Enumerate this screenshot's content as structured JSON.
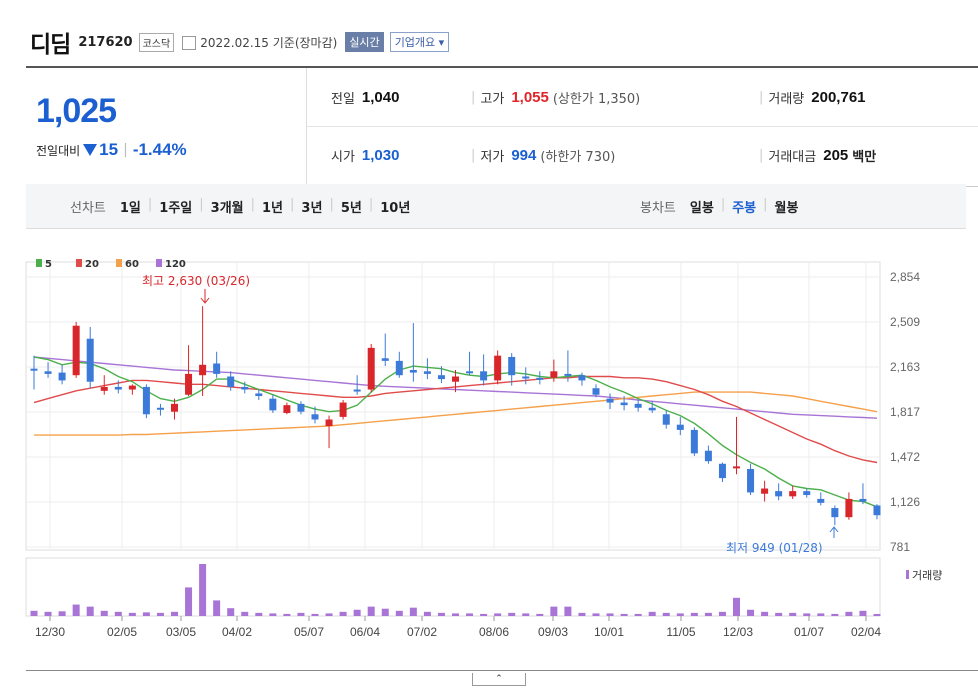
{
  "stock": {
    "name": "디딤",
    "code": "217620",
    "market": "코스닥",
    "date_text": "2022.02.15 기준(장마감)",
    "realtime_label": "실시간",
    "overview_label": "기업개요"
  },
  "price": {
    "current": "1,025",
    "change_label": "전일대비",
    "change_amount": "15",
    "change_sep": "|",
    "change_pct": "-1.44%"
  },
  "info": {
    "prev_label": "전일",
    "prev": "1,040",
    "high_label": "고가",
    "high": "1,055",
    "upper_limit": "(상한가 1,350)",
    "volume_label": "거래량",
    "volume": "200,761",
    "open_label": "시가",
    "open": "1,030",
    "low_label": "저가",
    "low": "994",
    "lower_limit": "(하한가 730)",
    "amount_label": "거래대금",
    "amount": "205",
    "amount_unit": "백만",
    "sep": "|"
  },
  "tabs": {
    "line_title": "선차트",
    "line_items": [
      "1일",
      "1주일",
      "3개월",
      "1년",
      "3년",
      "5년",
      "10년"
    ],
    "candle_title": "봉차트",
    "candle_items": [
      "일봉",
      "주봉",
      "월봉"
    ],
    "candle_selected": 1,
    "sep": "|"
  },
  "chart_data": {
    "type": "candlestick",
    "legend": [
      {
        "name": "5",
        "color": "#4bb04b"
      },
      {
        "name": "20",
        "color": "#e04b4b"
      },
      {
        "name": "60",
        "color": "#f5a04a"
      },
      {
        "name": "120",
        "color": "#a874d6"
      }
    ],
    "y_ticks": [
      "2,854",
      "2,509",
      "2,163",
      "1,817",
      "1,472",
      "1,126",
      "781"
    ],
    "ylim": [
      781,
      2854
    ],
    "x_ticks": [
      "12/30",
      "02/05",
      "03/05",
      "04/02",
      "05/07",
      "06/04",
      "07/02",
      "08/06",
      "09/03",
      "10/01",
      "11/05",
      "12/03",
      "01/07",
      "02/04"
    ],
    "high_annotation": "최고 2,630 (03/26)",
    "low_annotation": "최저 949 (01/28)",
    "volume_label": "거래량",
    "candles": [
      {
        "o": 2150,
        "h": 2250,
        "l": 1990,
        "c": 2150,
        "up": false
      },
      {
        "o": 2130,
        "h": 2200,
        "l": 2080,
        "c": 2110,
        "up": false
      },
      {
        "o": 2120,
        "h": 2180,
        "l": 2030,
        "c": 2060,
        "up": false
      },
      {
        "o": 2100,
        "h": 2510,
        "l": 2080,
        "c": 2480,
        "up": true
      },
      {
        "o": 2380,
        "h": 2470,
        "l": 2000,
        "c": 2050,
        "up": false
      },
      {
        "o": 1980,
        "h": 2100,
        "l": 1950,
        "c": 2010,
        "up": true
      },
      {
        "o": 2010,
        "h": 2060,
        "l": 1960,
        "c": 1990,
        "up": false
      },
      {
        "o": 1990,
        "h": 2030,
        "l": 1950,
        "c": 2020,
        "up": true
      },
      {
        "o": 2010,
        "h": 2030,
        "l": 1770,
        "c": 1800,
        "up": false
      },
      {
        "o": 1840,
        "h": 1880,
        "l": 1790,
        "c": 1850,
        "up": false
      },
      {
        "o": 1820,
        "h": 1920,
        "l": 1760,
        "c": 1880,
        "up": true
      },
      {
        "o": 1950,
        "h": 2330,
        "l": 1940,
        "c": 2110,
        "up": true
      },
      {
        "o": 2100,
        "h": 2630,
        "l": 1940,
        "c": 2180,
        "up": true
      },
      {
        "o": 2190,
        "h": 2280,
        "l": 2080,
        "c": 2110,
        "up": false
      },
      {
        "o": 2090,
        "h": 2130,
        "l": 1980,
        "c": 2010,
        "up": false
      },
      {
        "o": 2010,
        "h": 2050,
        "l": 1960,
        "c": 1990,
        "up": false
      },
      {
        "o": 1960,
        "h": 1990,
        "l": 1910,
        "c": 1940,
        "up": false
      },
      {
        "o": 1920,
        "h": 1950,
        "l": 1810,
        "c": 1830,
        "up": false
      },
      {
        "o": 1810,
        "h": 1890,
        "l": 1800,
        "c": 1870,
        "up": true
      },
      {
        "o": 1880,
        "h": 1900,
        "l": 1800,
        "c": 1820,
        "up": false
      },
      {
        "o": 1800,
        "h": 1860,
        "l": 1730,
        "c": 1760,
        "up": false
      },
      {
        "o": 1710,
        "h": 1790,
        "l": 1540,
        "c": 1760,
        "up": true
      },
      {
        "o": 1780,
        "h": 1910,
        "l": 1760,
        "c": 1890,
        "up": true
      },
      {
        "o": 1980,
        "h": 2100,
        "l": 1950,
        "c": 1990,
        "up": false
      },
      {
        "o": 1990,
        "h": 2340,
        "l": 1970,
        "c": 2310,
        "up": true
      },
      {
        "o": 2210,
        "h": 2420,
        "l": 2170,
        "c": 2230,
        "up": false
      },
      {
        "o": 2210,
        "h": 2280,
        "l": 2080,
        "c": 2100,
        "up": false
      },
      {
        "o": 2140,
        "h": 2500,
        "l": 2050,
        "c": 2120,
        "up": false
      },
      {
        "o": 2130,
        "h": 2230,
        "l": 2070,
        "c": 2110,
        "up": false
      },
      {
        "o": 2100,
        "h": 2170,
        "l": 2040,
        "c": 2070,
        "up": false
      },
      {
        "o": 2050,
        "h": 2140,
        "l": 1970,
        "c": 2090,
        "up": true
      },
      {
        "o": 2130,
        "h": 2280,
        "l": 2100,
        "c": 2130,
        "up": false
      },
      {
        "o": 2130,
        "h": 2260,
        "l": 2020,
        "c": 2060,
        "up": false
      },
      {
        "o": 2060,
        "h": 2290,
        "l": 2030,
        "c": 2250,
        "up": true
      },
      {
        "o": 2240,
        "h": 2270,
        "l": 2020,
        "c": 2100,
        "up": false
      },
      {
        "o": 2090,
        "h": 2160,
        "l": 2030,
        "c": 2080,
        "up": false
      },
      {
        "o": 2080,
        "h": 2130,
        "l": 2030,
        "c": 2070,
        "up": false
      },
      {
        "o": 2080,
        "h": 2220,
        "l": 2050,
        "c": 2130,
        "up": true
      },
      {
        "o": 2110,
        "h": 2290,
        "l": 2050,
        "c": 2110,
        "up": false
      },
      {
        "o": 2100,
        "h": 2120,
        "l": 2020,
        "c": 2060,
        "up": false
      },
      {
        "o": 2000,
        "h": 2030,
        "l": 1930,
        "c": 1950,
        "up": false
      },
      {
        "o": 1920,
        "h": 1960,
        "l": 1840,
        "c": 1890,
        "up": false
      },
      {
        "o": 1890,
        "h": 1940,
        "l": 1830,
        "c": 1870,
        "up": false
      },
      {
        "o": 1880,
        "h": 1910,
        "l": 1820,
        "c": 1850,
        "up": false
      },
      {
        "o": 1850,
        "h": 1900,
        "l": 1810,
        "c": 1830,
        "up": false
      },
      {
        "o": 1800,
        "h": 1830,
        "l": 1690,
        "c": 1720,
        "up": false
      },
      {
        "o": 1720,
        "h": 1780,
        "l": 1640,
        "c": 1680,
        "up": false
      },
      {
        "o": 1680,
        "h": 1700,
        "l": 1480,
        "c": 1500,
        "up": false
      },
      {
        "o": 1520,
        "h": 1560,
        "l": 1420,
        "c": 1440,
        "up": false
      },
      {
        "o": 1420,
        "h": 1430,
        "l": 1280,
        "c": 1310,
        "up": false
      },
      {
        "o": 1400,
        "h": 1780,
        "l": 1340,
        "c": 1400,
        "up": true
      },
      {
        "o": 1380,
        "h": 1420,
        "l": 1180,
        "c": 1200,
        "up": false
      },
      {
        "o": 1190,
        "h": 1290,
        "l": 1130,
        "c": 1230,
        "up": true
      },
      {
        "o": 1210,
        "h": 1270,
        "l": 1140,
        "c": 1170,
        "up": false
      },
      {
        "o": 1170,
        "h": 1250,
        "l": 1150,
        "c": 1210,
        "up": true
      },
      {
        "o": 1210,
        "h": 1230,
        "l": 1160,
        "c": 1180,
        "up": false
      },
      {
        "o": 1150,
        "h": 1200,
        "l": 1100,
        "c": 1120,
        "up": false
      },
      {
        "o": 1080,
        "h": 1100,
        "l": 949,
        "c": 1010,
        "up": false
      },
      {
        "o": 1010,
        "h": 1200,
        "l": 990,
        "c": 1150,
        "up": true
      },
      {
        "o": 1150,
        "h": 1270,
        "l": 1110,
        "c": 1130,
        "up": false
      },
      {
        "o": 1100,
        "h": 1110,
        "l": 994,
        "c": 1025,
        "up": false
      }
    ],
    "ma5": [
      2240,
      2220,
      2180,
      2200,
      2190,
      2150,
      2090,
      2050,
      1980,
      1920,
      1900,
      1930,
      1990,
      2070,
      2070,
      2030,
      1990,
      1950,
      1910,
      1870,
      1840,
      1820,
      1830,
      1870,
      1970,
      2070,
      2140,
      2170,
      2160,
      2150,
      2120,
      2100,
      2090,
      2110,
      2120,
      2110,
      2090,
      2080,
      2090,
      2100,
      2060,
      2010,
      1970,
      1920,
      1880,
      1830,
      1790,
      1730,
      1650,
      1560,
      1490,
      1430,
      1380,
      1310,
      1250,
      1230,
      1220,
      1180,
      1140,
      1130,
      1090
    ],
    "ma20": [
      1890,
      1920,
      1950,
      1980,
      2000,
      2020,
      2040,
      2060,
      2060,
      2050,
      2040,
      2030,
      2030,
      2020,
      2010,
      2000,
      1990,
      1980,
      1970,
      1960,
      1950,
      1940,
      1930,
      1930,
      1940,
      1960,
      1970,
      1980,
      1990,
      2000,
      2010,
      2020,
      2030,
      2040,
      2050,
      2060,
      2070,
      2080,
      2080,
      2090,
      2090,
      2090,
      2080,
      2080,
      2070,
      2050,
      2020,
      1990,
      1950,
      1900,
      1860,
      1810,
      1760,
      1710,
      1660,
      1610,
      1570,
      1520,
      1480,
      1450,
      1430
    ],
    "ma60": [
      1640,
      1640,
      1640,
      1640,
      1640,
      1640,
      1640,
      1645,
      1645,
      1650,
      1655,
      1660,
      1665,
      1670,
      1675,
      1680,
      1685,
      1690,
      1695,
      1700,
      1705,
      1710,
      1720,
      1730,
      1740,
      1750,
      1760,
      1770,
      1780,
      1790,
      1800,
      1810,
      1820,
      1830,
      1840,
      1850,
      1860,
      1870,
      1880,
      1890,
      1900,
      1910,
      1920,
      1930,
      1940,
      1950,
      1960,
      1970,
      1970,
      1970,
      1970,
      1970,
      1960,
      1950,
      1940,
      1920,
      1900,
      1880,
      1860,
      1840,
      1820
    ],
    "ma120": [
      2240,
      2230,
      2220,
      2210,
      2200,
      2190,
      2180,
      2170,
      2160,
      2150,
      2140,
      2135,
      2130,
      2125,
      2120,
      2110,
      2100,
      2090,
      2080,
      2070,
      2060,
      2050,
      2040,
      2030,
      2020,
      2015,
      2010,
      2005,
      2000,
      1995,
      1990,
      1985,
      1980,
      1975,
      1970,
      1965,
      1960,
      1955,
      1950,
      1945,
      1940,
      1930,
      1920,
      1910,
      1900,
      1890,
      1880,
      1870,
      1860,
      1850,
      1840,
      1830,
      1820,
      1810,
      1800,
      1795,
      1790,
      1785,
      1780,
      1775,
      1770
    ],
    "volume": [
      0.1,
      0.08,
      0.09,
      0.22,
      0.18,
      0.1,
      0.08,
      0.06,
      0.07,
      0.06,
      0.08,
      0.55,
      1.0,
      0.3,
      0.15,
      0.08,
      0.06,
      0.05,
      0.04,
      0.06,
      0.04,
      0.05,
      0.08,
      0.12,
      0.18,
      0.14,
      0.1,
      0.16,
      0.08,
      0.06,
      0.05,
      0.05,
      0.04,
      0.05,
      0.06,
      0.05,
      0.04,
      0.18,
      0.18,
      0.06,
      0.05,
      0.05,
      0.04,
      0.04,
      0.08,
      0.06,
      0.05,
      0.06,
      0.06,
      0.08,
      0.35,
      0.12,
      0.08,
      0.06,
      0.06,
      0.05,
      0.05,
      0.04,
      0.08,
      0.1,
      0.03
    ]
  }
}
